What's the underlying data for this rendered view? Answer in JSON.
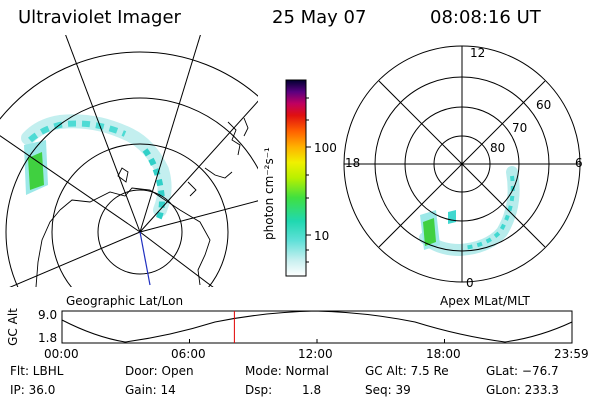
{
  "header": {
    "instrument": "Ultraviolet Imager",
    "date": "25 May 07",
    "time": "08:08:16 UT"
  },
  "left_panel": {
    "label": "Geographic Lat/Lon"
  },
  "right_panel": {
    "label": "Apex MLat/MLT",
    "mlt_labels": [
      "12",
      "18",
      "6",
      "0"
    ],
    "mlat_labels": [
      "60",
      "70",
      "80"
    ]
  },
  "colorbar": {
    "unit_label": "photon cm⁻²s⁻¹",
    "tick_labels": [
      "100",
      "10"
    ]
  },
  "altitude_plot": {
    "ylabel": "GC Alt",
    "ymax": "9.0",
    "ymin": "1.8",
    "x_ticks": [
      "00:00",
      "06:00",
      "12:00",
      "18:00",
      "23:59"
    ],
    "current_time_fraction": 0.338
  },
  "info": {
    "filter": "Flt: LBHL",
    "door": "Door: Open",
    "mode": "Mode: Normal",
    "gc_alt": "GC Alt: 7.5 Re",
    "glat": "GLat: −76.7",
    "ip": "IP: 36.0",
    "gain": "Gain: 14",
    "dsp_label": "Dsp:",
    "dsp_value": "1.8",
    "seq": "Seq: 39",
    "glon": "GLon: 233.3"
  },
  "colors": {
    "line": "#000000",
    "time_marker": "#e00000",
    "nadir_line": "#2030c0",
    "aurora_low": "#9fe6e6",
    "aurora_mid": "#38d8c8",
    "aurora_high": "#40d040"
  }
}
